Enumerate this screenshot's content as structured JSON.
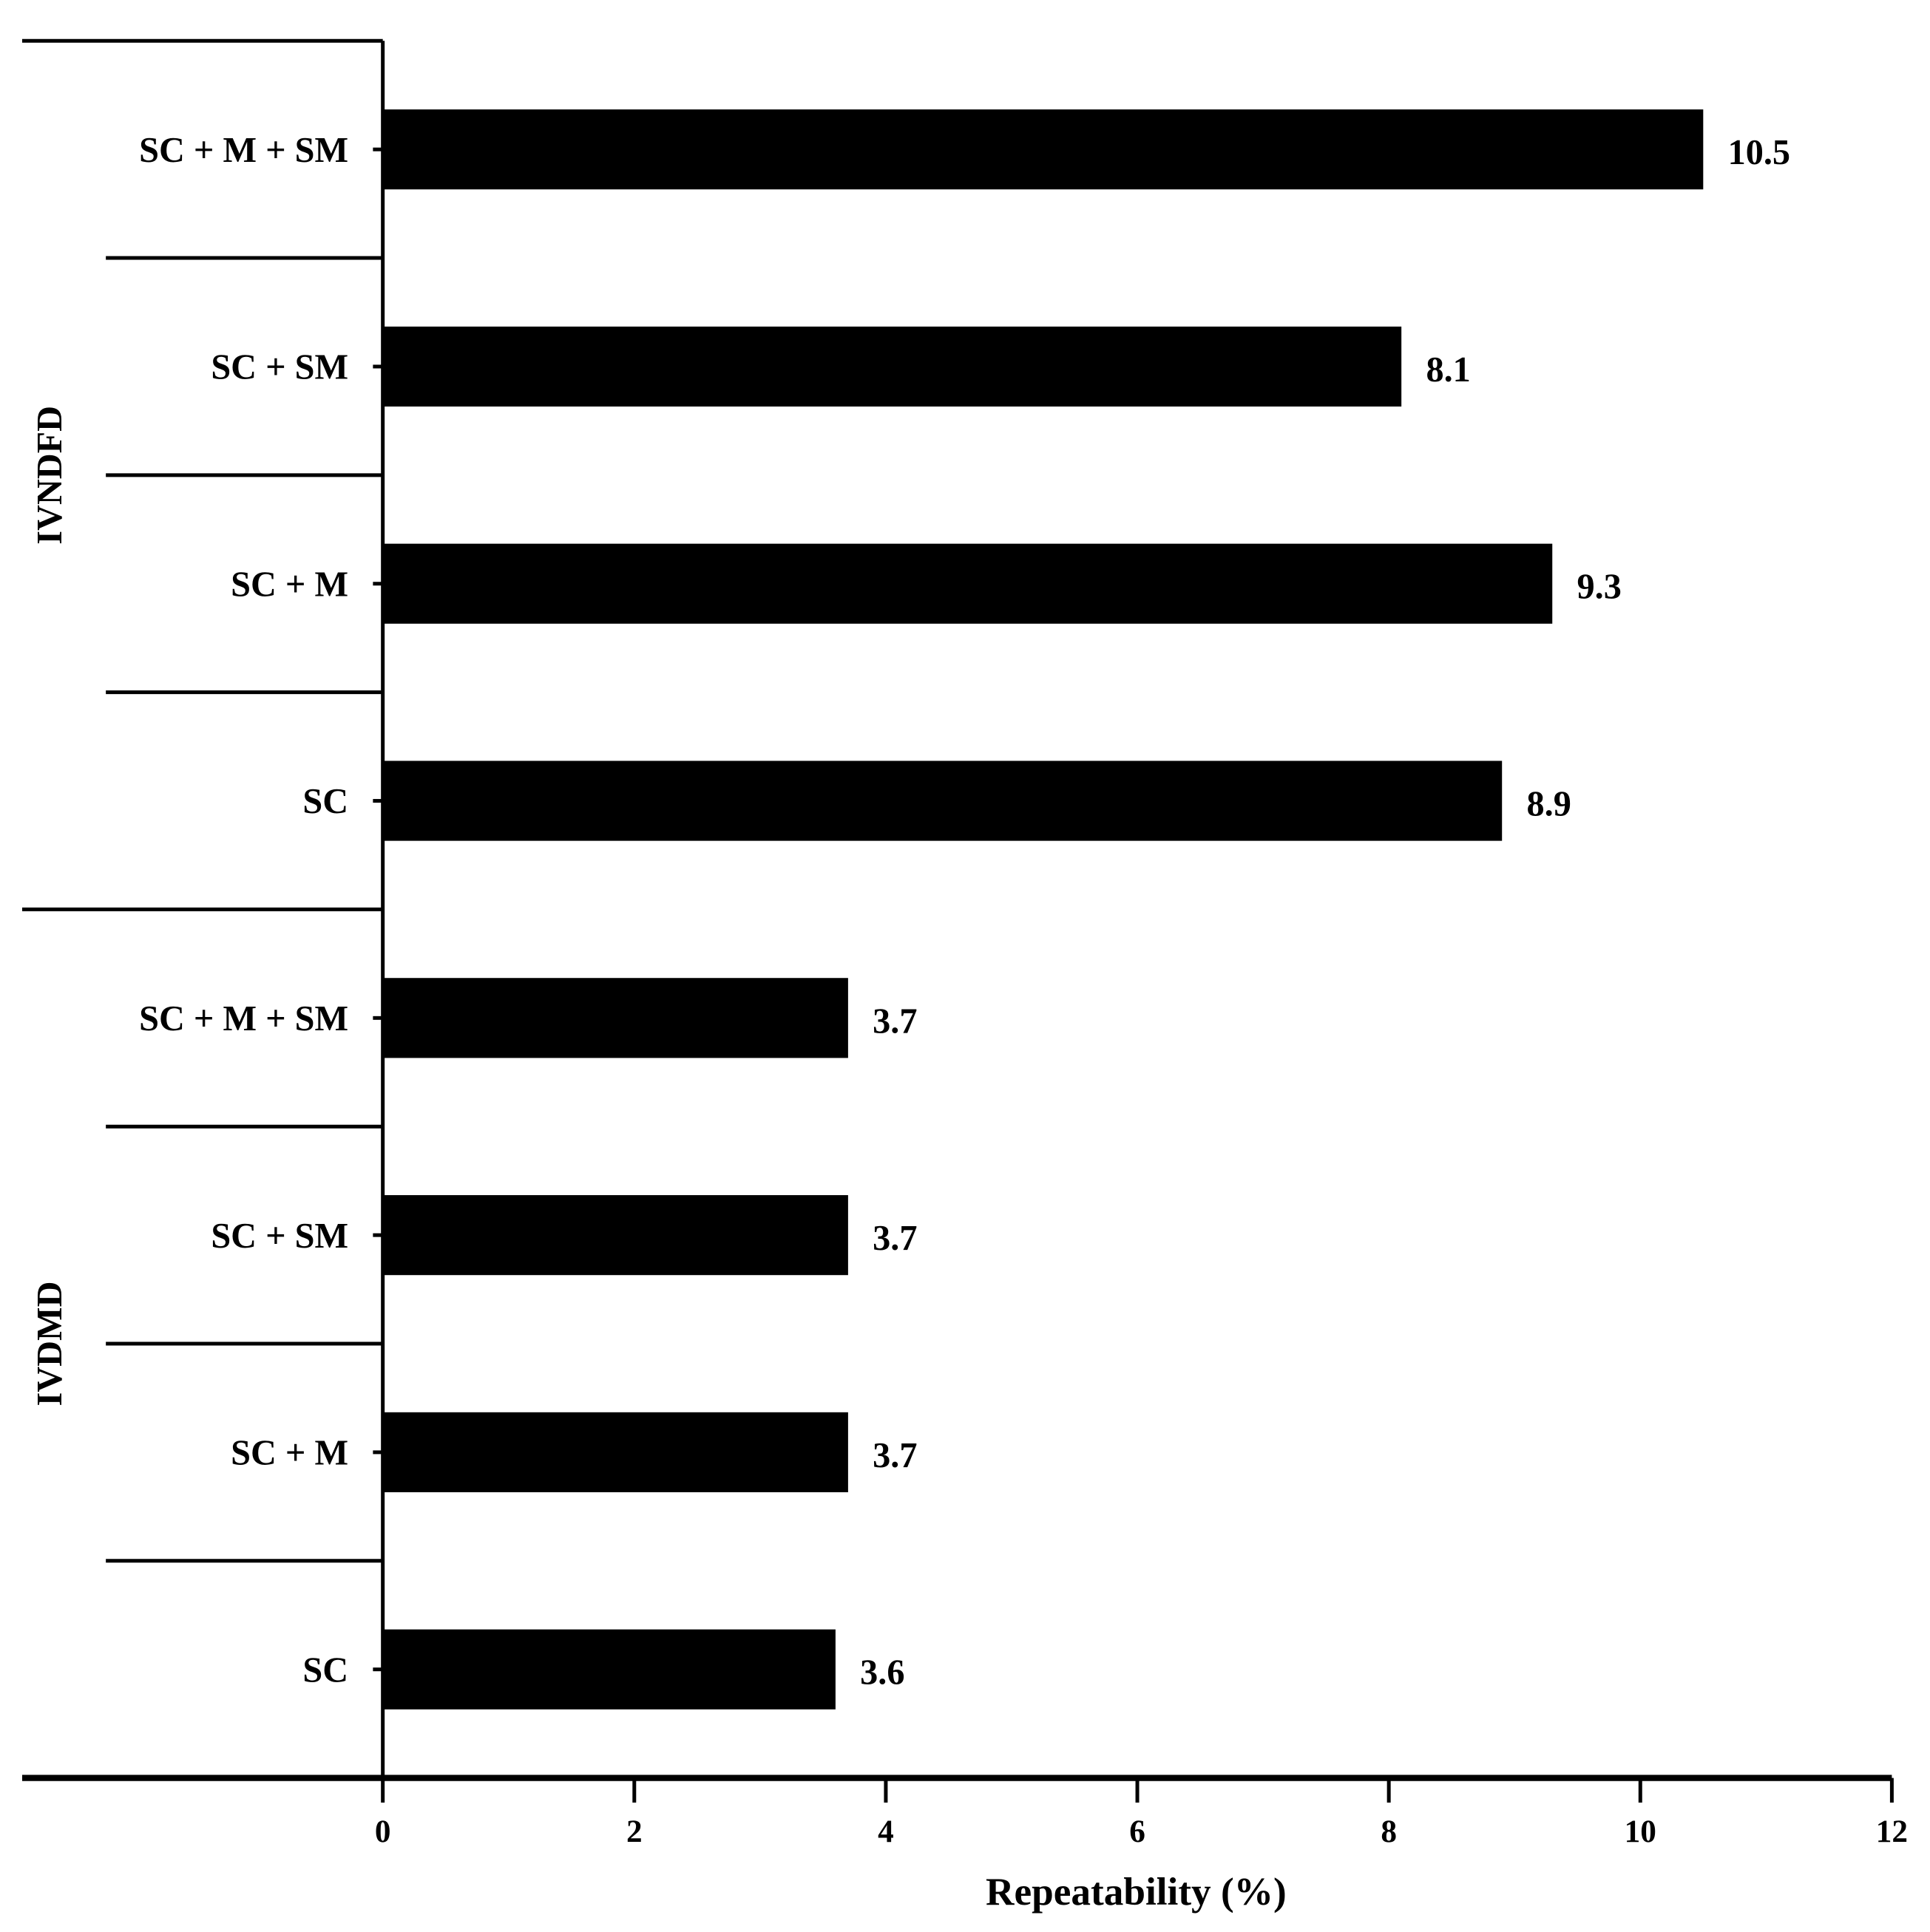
{
  "chart_data": {
    "type": "bar",
    "orientation": "horizontal",
    "xlabel": "Repeatability (%)",
    "xlim": [
      0,
      12
    ],
    "xticks": [
      0,
      2,
      4,
      6,
      8,
      10,
      12
    ],
    "grid": false,
    "bar_color": "#000000",
    "groups": [
      {
        "name": "IVNDFD",
        "categories": [
          "SC + M + SM",
          "SC + SM",
          "SC + M",
          "SC"
        ],
        "values": [
          10.5,
          8.1,
          9.3,
          8.9
        ],
        "labels": [
          "10.5",
          "8.1",
          "9.3",
          "8.9"
        ]
      },
      {
        "name": "IVDMD",
        "categories": [
          "SC + M + SM",
          "SC + SM",
          "SC + M",
          "SC"
        ],
        "values": [
          3.7,
          3.7,
          3.7,
          3.6
        ],
        "labels": [
          "3.7",
          "3.7",
          "3.7",
          "3.6"
        ]
      }
    ]
  }
}
